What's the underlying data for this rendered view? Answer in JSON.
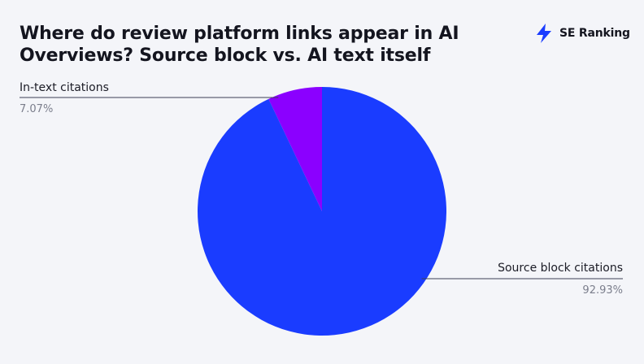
{
  "title": "Where do review platform links appear in AI Overviews? Source block vs. AI text itself",
  "brand": {
    "name": "SE Ranking",
    "logo_icon": "lightning-logo-icon",
    "logo_color": "#1a3cff"
  },
  "chart_data": {
    "type": "pie",
    "title": "Where do review platform links appear in AI Overviews? Source block vs. AI text itself",
    "slices": [
      {
        "label": "In-text citations",
        "value": 7.07,
        "display": "7.07%",
        "color": "#8b00ff"
      },
      {
        "label": "Source block citations",
        "value": 92.93,
        "display": "92.93%",
        "color": "#1a3cff"
      }
    ],
    "start_angle_deg": 0,
    "direction": "counterclockwise",
    "legend": "callout-labels"
  }
}
